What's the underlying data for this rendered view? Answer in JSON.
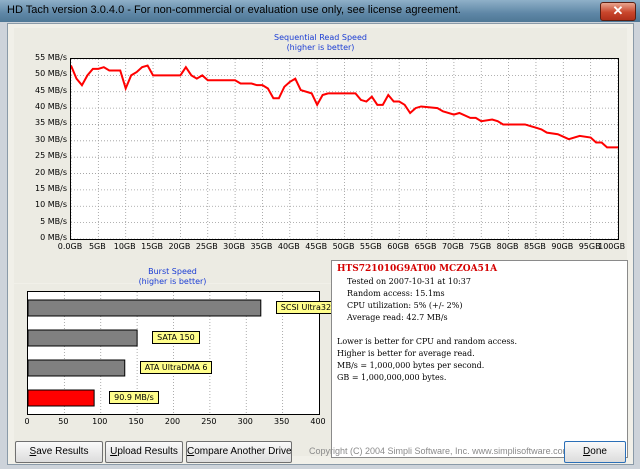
{
  "window": {
    "title": "HD Tach version 3.0.4.0  - For non-commercial or evaluation use only, see license agreement.",
    "close_glyph": "✕"
  },
  "chart_data": [
    {
      "type": "line",
      "title": "Sequential Read Speed",
      "subtitle": "(higher is better)",
      "xlabel": "",
      "ylabel": "",
      "x_unit": "GB",
      "y_unit": "MB/s",
      "xlim": [
        0,
        100
      ],
      "ylim": [
        0,
        55
      ],
      "x_ticks": [
        "0.0GB",
        "5GB",
        "10GB",
        "15GB",
        "20GB",
        "25GB",
        "30GB",
        "35GB",
        "40GB",
        "45GB",
        "50GB",
        "55GB",
        "60GB",
        "65GB",
        "70GB",
        "75GB",
        "80GB",
        "85GB",
        "90GB",
        "95GB",
        "100GB"
      ],
      "y_ticks": [
        "55 MB/s",
        "50 MB/s",
        "45 MB/s",
        "40 MB/s",
        "35 MB/s",
        "30 MB/s",
        "25 MB/s",
        "20 MB/s",
        "15 MB/s",
        "10 MB/s",
        "5 MB/s",
        "0 MB/s"
      ],
      "grid": true,
      "series_color": "#ff0000",
      "points": [
        [
          0,
          53
        ],
        [
          1,
          49
        ],
        [
          2,
          47
        ],
        [
          3,
          50
        ],
        [
          4,
          52
        ],
        [
          5,
          52
        ],
        [
          6,
          52.5
        ],
        [
          7,
          51.5
        ],
        [
          9,
          51.5
        ],
        [
          10,
          46
        ],
        [
          11,
          50
        ],
        [
          12,
          51
        ],
        [
          13,
          52.5
        ],
        [
          14,
          53
        ],
        [
          15,
          50
        ],
        [
          20,
          50
        ],
        [
          21,
          52.5
        ],
        [
          22,
          50
        ],
        [
          23,
          49
        ],
        [
          24,
          50
        ],
        [
          25,
          48.5
        ],
        [
          30,
          48.5
        ],
        [
          31,
          47.5
        ],
        [
          33,
          47.5
        ],
        [
          34,
          47
        ],
        [
          35,
          47
        ],
        [
          36,
          46
        ],
        [
          37,
          43
        ],
        [
          38,
          43
        ],
        [
          39,
          46.5
        ],
        [
          40,
          48
        ],
        [
          41,
          49
        ],
        [
          42,
          45.5
        ],
        [
          44,
          44.5
        ],
        [
          45,
          41
        ],
        [
          46,
          44
        ],
        [
          47,
          44.5
        ],
        [
          52,
          44.5
        ],
        [
          53,
          42.5
        ],
        [
          54,
          42
        ],
        [
          55,
          43.5
        ],
        [
          56,
          41
        ],
        [
          57,
          41
        ],
        [
          58,
          44
        ],
        [
          59,
          42
        ],
        [
          60,
          42
        ],
        [
          61,
          41
        ],
        [
          62,
          38.5
        ],
        [
          63,
          40
        ],
        [
          64,
          40.5
        ],
        [
          67,
          40
        ],
        [
          68,
          39
        ],
        [
          70,
          38
        ],
        [
          71,
          38.5
        ],
        [
          73,
          37
        ],
        [
          74,
          37
        ],
        [
          75,
          36
        ],
        [
          77,
          36.5
        ],
        [
          78,
          36
        ],
        [
          79,
          35
        ],
        [
          83,
          35
        ],
        [
          85,
          34
        ],
        [
          86,
          33.5
        ],
        [
          87,
          32.5
        ],
        [
          89,
          32
        ],
        [
          91,
          30.5
        ],
        [
          93,
          31.5
        ],
        [
          95,
          31
        ],
        [
          96,
          29.5
        ],
        [
          97,
          29.5
        ],
        [
          98,
          28
        ],
        [
          100,
          28
        ]
      ]
    },
    {
      "type": "bar",
      "title": "Burst Speed",
      "subtitle": "(higher is better)",
      "orientation": "horizontal",
      "xlim": [
        0,
        400
      ],
      "x_ticks": [
        "0",
        "50",
        "100",
        "150",
        "200",
        "250",
        "300",
        "350",
        "400"
      ],
      "categories": [
        "SCSI Ultra320",
        "SATA 150",
        "ATA UltraDMA 6",
        "90.9 MB/s"
      ],
      "values": [
        320,
        150,
        133,
        90.9
      ],
      "colors": [
        "#808080",
        "#808080",
        "#808080",
        "#ff0000"
      ]
    }
  ],
  "info": {
    "drive": "HTS721010G9AT00 MCZOA51A",
    "tested": "Tested on 2007-10-31 at 10:37",
    "random_access": "Random access: 15.1ms",
    "cpu": "CPU utilization: 5% (+/- 2%)",
    "average_read": "Average read: 42.7 MB/s",
    "note1": "Lower is better for CPU and random access.",
    "note2": "Higher is better for average read.",
    "note3": "MB/s = 1,000,000 bytes per second.",
    "note4": "GB = 1,000,000,000 bytes."
  },
  "buttons": {
    "save": {
      "access": "S",
      "rest": "ave Results"
    },
    "upload": {
      "access": "U",
      "rest": "pload Results"
    },
    "compare": {
      "access": "C",
      "rest": "ompare Another Drive"
    },
    "done": {
      "access": "D",
      "rest": "one"
    }
  },
  "copyright": "Copyright (C) 2004 Simpli Software, Inc. www.simplisoftware.com"
}
